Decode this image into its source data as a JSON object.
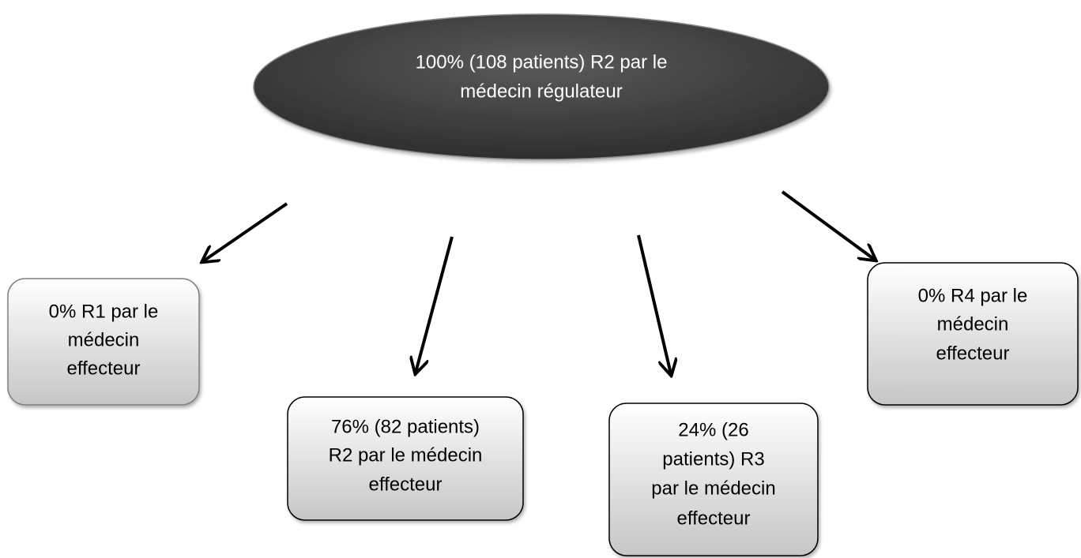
{
  "nodes": [
    {
      "lines": [
        "100% (108 patients) R2 par le",
        "médecin régulateur"
      ]
    },
    {
      "lines": [
        "0% R1 par le",
        "médecin",
        "effecteur"
      ]
    },
    {
      "lines": [
        "76% (82 patients)",
        "R2 par le médecin",
        "effecteur"
      ]
    },
    {
      "lines": [
        "24% (26",
        "patients) R3",
        "par le médecin",
        "effecteur"
      ]
    },
    {
      "lines": [
        "0% R4 par le",
        "médecin",
        "effecteur"
      ]
    }
  ]
}
